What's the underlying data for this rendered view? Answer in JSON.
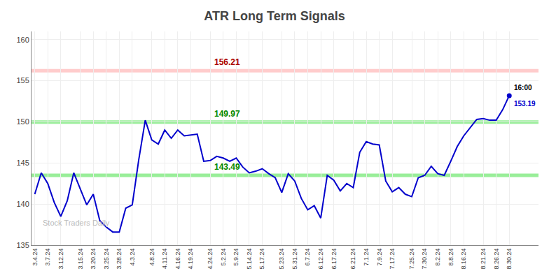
{
  "chart_data": {
    "type": "line",
    "title": "ATR Long Term Signals",
    "color": "#0000cc",
    "grid": true,
    "ylim": [
      135,
      161
    ],
    "yticks": [
      135,
      140,
      145,
      150,
      155,
      160
    ],
    "categories": [
      "3.4.24",
      null,
      "3.7.24",
      null,
      "3.12.24",
      null,
      null,
      "3.15.24",
      null,
      "3.20.24",
      null,
      "3.25.24",
      null,
      "3.28.24",
      null,
      "4.3.24",
      null,
      null,
      "4.8.24",
      null,
      "4.11.24",
      null,
      "4.16.24",
      null,
      "4.19.24",
      null,
      null,
      "4.24.24",
      null,
      "5.2.24",
      null,
      "5.9.24",
      null,
      "5.14.24",
      null,
      "5.17.24",
      null,
      null,
      "5.23.24",
      null,
      "5.31.24",
      null,
      "6.7.24",
      null,
      "6.12.24",
      null,
      "6.17.24",
      null,
      null,
      "6.21.24",
      null,
      "7.1.24",
      null,
      "7.9.24",
      null,
      "7.17.24",
      null,
      null,
      "7.25.24",
      null,
      "7.30.24",
      null,
      "8.2.24",
      null,
      "8.8.24",
      null,
      "8.16.24",
      null,
      null,
      "8.21.24",
      null,
      "8.26.24",
      null,
      "8.30.24"
    ],
    "values": [
      141.2,
      143.8,
      142.5,
      140.2,
      138.5,
      140.4,
      143.8,
      141.8,
      139.9,
      141.2,
      138.0,
      137.2,
      136.6,
      136.6,
      139.5,
      139.9,
      145.4,
      150.2,
      147.8,
      147.3,
      149.0,
      148.0,
      149.0,
      148.3,
      148.4,
      148.5,
      145.2,
      145.3,
      145.8,
      145.6,
      145.2,
      145.6,
      144.5,
      143.8,
      144.0,
      144.3,
      143.7,
      143.2,
      141.4,
      143.7,
      142.8,
      140.7,
      139.3,
      139.8,
      138.3,
      143.5,
      142.9,
      141.6,
      142.5,
      142.0,
      146.3,
      147.6,
      147.3,
      147.2,
      142.8,
      141.5,
      142.0,
      141.2,
      140.9,
      143.2,
      143.5,
      144.6,
      143.7,
      143.5,
      145.2,
      147.0,
      148.3,
      149.3,
      150.3,
      150.4,
      150.2,
      150.2,
      151.5,
      153.19
    ],
    "hlines": [
      {
        "value": 156.21,
        "color": "#ffcccc",
        "label": "156.21",
        "label_color": "#aa0000"
      },
      {
        "value": 149.97,
        "color": "#99ee99",
        "label": "149.97",
        "label_color": "#008800"
      },
      {
        "value": 143.49,
        "color": "#99ee99",
        "label": "143.49",
        "label_color": "#008800"
      }
    ],
    "last_point_labels": [
      {
        "text": "16:00",
        "color": "#000000"
      },
      {
        "text": "153.19",
        "color": "#0000cc"
      }
    ],
    "watermark": {
      "text": "Stock Traders Daily",
      "color": "#bbbbbb"
    }
  }
}
